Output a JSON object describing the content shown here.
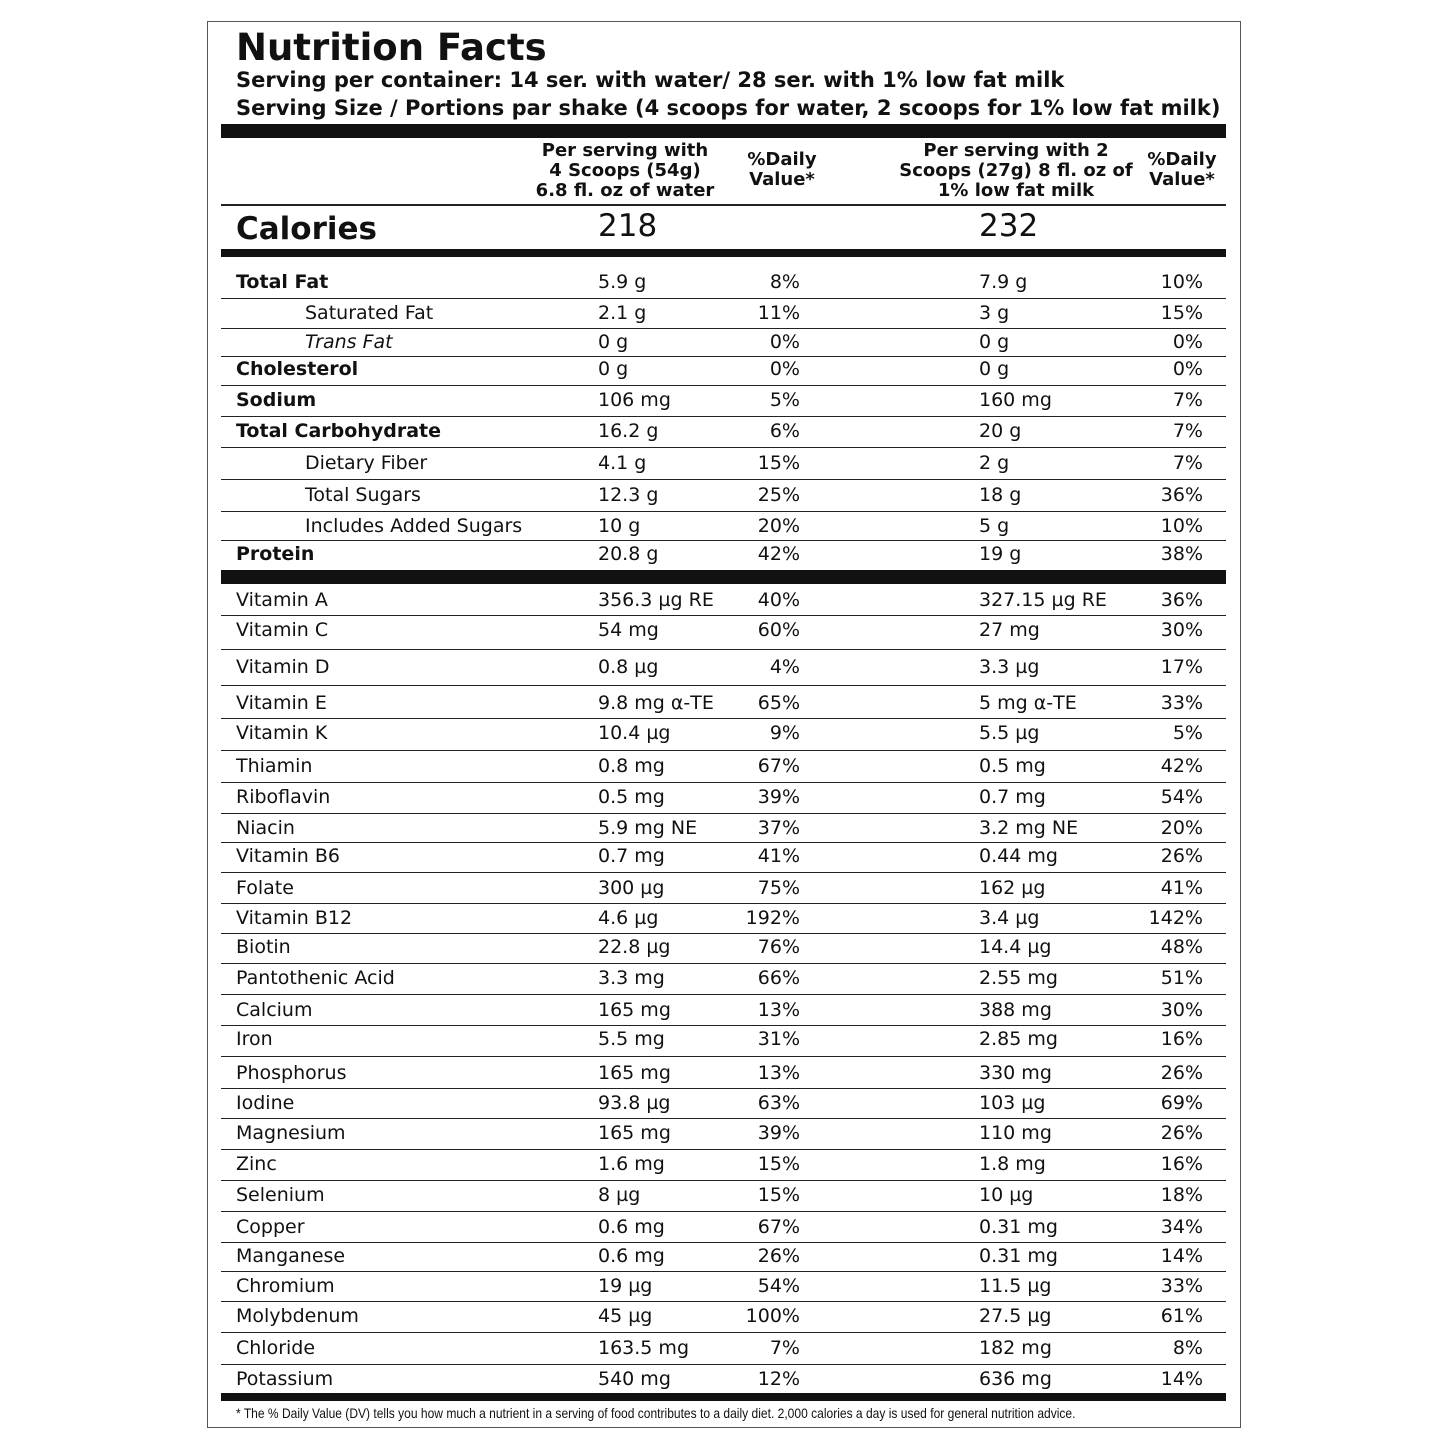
{
  "header": {
    "title": "Nutrition Facts",
    "servings": "Serving per container: 14 ser. with water/ 28 ser. with 1% low fat milk",
    "serving_size": "Serving Size / Portions par shake (4 scoops for water, 2 scoops for 1% low fat milk)"
  },
  "columns": [
    [
      "Per serving with",
      "4 Scoops (54g)",
      "6.8 fl. oz of water"
    ],
    [
      "%Daily",
      "Value*"
    ],
    [
      "Per serving with 2",
      "Scoops (27g) 8 fl. oz of",
      "1% low fat milk"
    ],
    [
      "%Daily",
      "Value*"
    ]
  ],
  "calories": {
    "label": "Calories",
    "values": [
      "218",
      "232"
    ]
  },
  "macronutrients": [
    [
      "Total Fat",
      "5.9 g",
      "8%",
      "7.9 g",
      "10%"
    ],
    [
      "Saturated Fat",
      "2.1 g",
      "11%",
      "3 g",
      "15%"
    ],
    [
      "Trans Fat",
      "0 g",
      "0%",
      "0 g",
      "0%"
    ],
    [
      "Cholesterol",
      "0 g",
      "0%",
      "0 g",
      "0%"
    ],
    [
      "Sodium",
      "106 mg",
      "5%",
      "160 mg",
      "7%"
    ],
    [
      "Total Carbohydrate",
      "16.2 g",
      "6%",
      "20 g",
      "7%"
    ],
    [
      "Dietary Fiber",
      "4.1 g",
      "15%",
      "2 g",
      "7%"
    ],
    [
      "Total Sugars",
      "12.3 g",
      "25%",
      "18 g",
      "36%"
    ],
    [
      "Includes Added Sugars",
      "10 g",
      "20%",
      "5 g",
      "10%"
    ],
    [
      "Protein",
      "20.8 g",
      "42%",
      "19 g",
      "38%"
    ]
  ],
  "micronutrients": [
    [
      "Vitamin A",
      "356.3 µg RE",
      "40%",
      "327.15 µg RE",
      "36%"
    ],
    [
      "Vitamin C",
      "54 mg",
      "60%",
      "27 mg",
      "30%"
    ],
    [
      "Vitamin D",
      "0.8 µg",
      "4%",
      "3.3 µg",
      "17%"
    ],
    [
      "Vitamin E",
      "9.8 mg α-TE",
      "65%",
      "5 mg α-TE",
      "33%"
    ],
    [
      "Vitamin K",
      "10.4 µg",
      "9%",
      "5.5 µg",
      "5%"
    ],
    [
      "Thiamin",
      "0.8 mg",
      "67%",
      "0.5 mg",
      "42%"
    ],
    [
      "Riboflavin",
      "0.5 mg",
      "39%",
      "0.7 mg",
      "54%"
    ],
    [
      "Niacin",
      "5.9 mg NE",
      "37%",
      "3.2 mg NE",
      "20%"
    ],
    [
      "Vitamin B6",
      "0.7 mg",
      "41%",
      "0.44 mg",
      "26%"
    ],
    [
      "Folate",
      "300 µg",
      "75%",
      "162 µg",
      "41%"
    ],
    [
      "Vitamin B12",
      "4.6 µg",
      "192%",
      "3.4 µg",
      "142%"
    ],
    [
      "Biotin",
      "22.8 µg",
      "76%",
      "14.4 µg",
      "48%"
    ],
    [
      "Pantothenic Acid",
      "3.3 mg",
      "66%",
      "2.55 mg",
      "51%"
    ],
    [
      "Calcium",
      "165 mg",
      "13%",
      "388 mg",
      "30%"
    ],
    [
      "Iron",
      "5.5 mg",
      "31%",
      "2.85 mg",
      "16%"
    ],
    [
      "Phosphorus",
      "165 mg",
      "13%",
      "330 mg",
      "26%"
    ],
    [
      "Iodine",
      "93.8 µg",
      "63%",
      "103 µg",
      "69%"
    ],
    [
      "Magnesium",
      "165 mg",
      "39%",
      "110 mg",
      "26%"
    ],
    [
      "Zinc",
      "1.6 mg",
      "15%",
      "1.8 mg",
      "16%"
    ],
    [
      "Selenium",
      "8 µg",
      "15%",
      "10 µg",
      "18%"
    ],
    [
      "Copper",
      "0.6 mg",
      "67%",
      "0.31 mg",
      "34%"
    ],
    [
      "Manganese",
      "0.6 mg",
      "26%",
      "0.31 mg",
      "14%"
    ],
    [
      "Chromium",
      "19 µg",
      "54%",
      "11.5 µg",
      "33%"
    ],
    [
      "Molybdenum",
      "45 µg",
      "100%",
      "27.5 µg",
      "61%"
    ],
    [
      "Chloride",
      "163.5 mg",
      "7%",
      "182 mg",
      "8%"
    ],
    [
      "Potassium",
      "540 mg",
      "12%",
      "636 mg",
      "14%"
    ]
  ],
  "footnote": "* The % Daily Value (DV) tells you how much a nutrient in a serving of food contributes to a daily diet. 2,000 calories a day is used for general nutrition advice."
}
